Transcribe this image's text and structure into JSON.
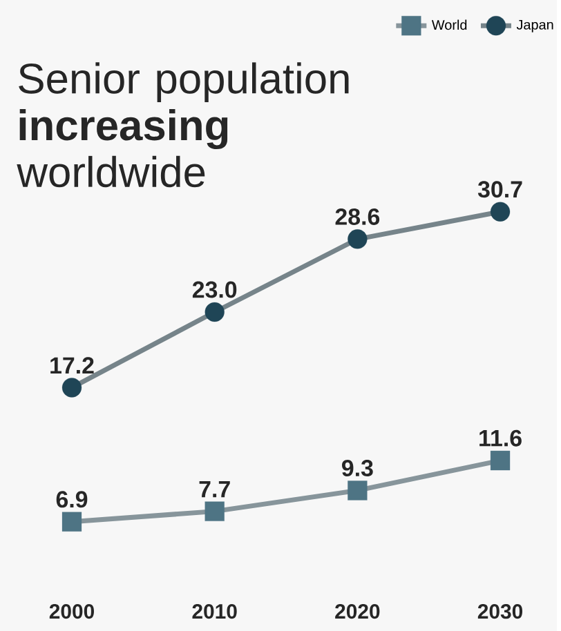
{
  "chart_data": {
    "type": "line",
    "title": "Senior population **increasing** worldwide",
    "categories": [
      "2000",
      "2010",
      "2020",
      "2030"
    ],
    "series": [
      {
        "name": "World",
        "color": "#4e7484",
        "marker": "square",
        "values": [
          6.9,
          7.7,
          9.3,
          11.6
        ],
        "value_labels": [
          "6.9",
          "7.7",
          "9.3",
          "11.6"
        ]
      },
      {
        "name": "Japan",
        "color": "#1f4556",
        "marker": "circle",
        "values": [
          17.2,
          23.0,
          28.6,
          30.7
        ],
        "value_labels": [
          "17.2",
          "23.0",
          "28.6",
          "30.7"
        ]
      }
    ],
    "legend": "top right",
    "grid": false
  }
}
